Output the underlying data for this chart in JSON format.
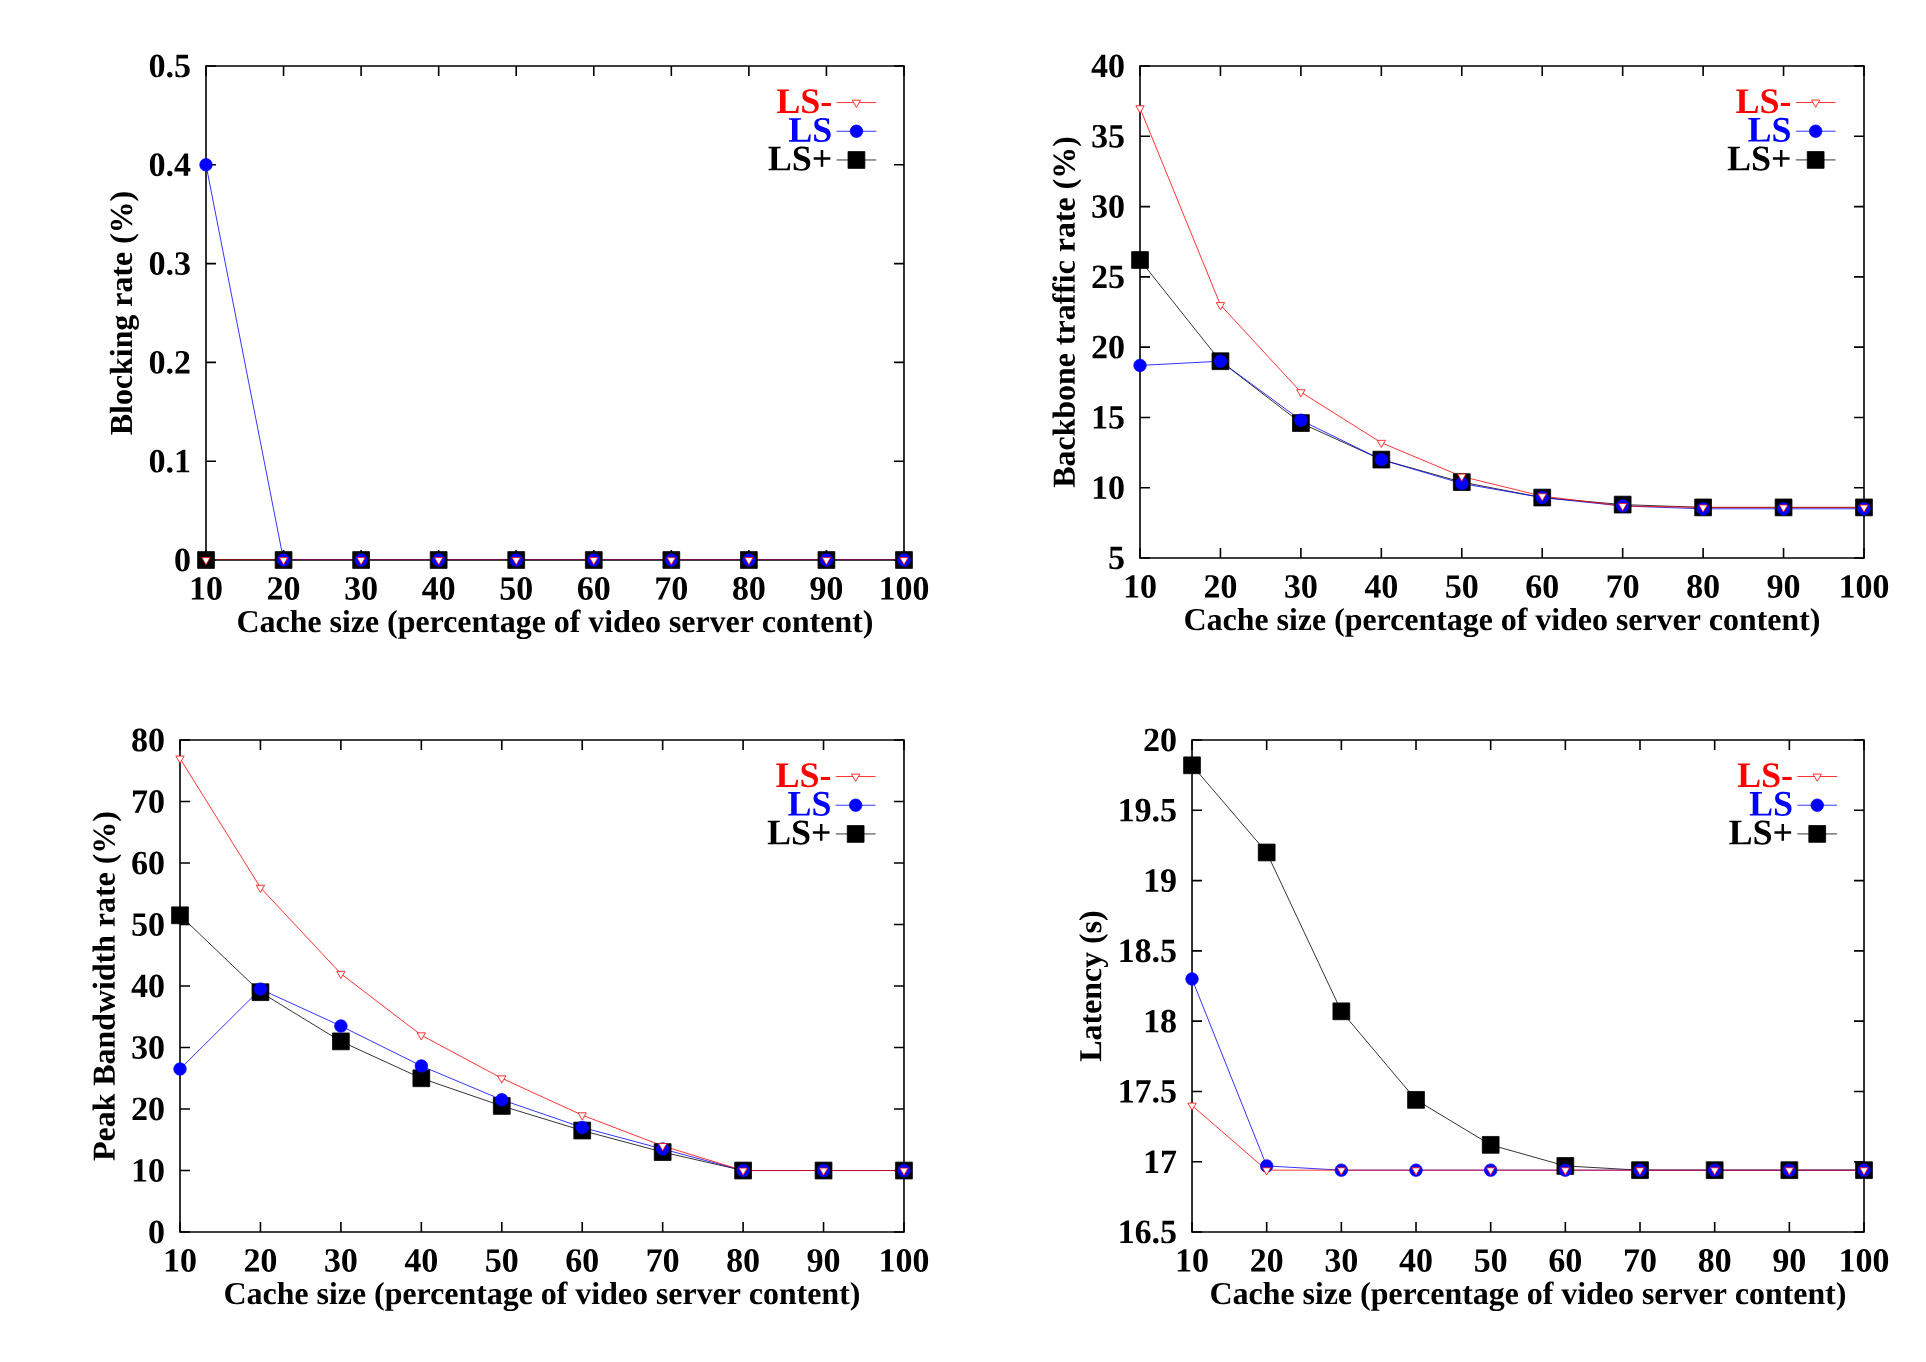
{
  "chart_data": [
    {
      "type": "line",
      "xlabel": "Cache size (percentage of video server content)",
      "ylabel": "Blocking rate (%)",
      "x": [
        10,
        20,
        30,
        40,
        50,
        60,
        70,
        80,
        90,
        100
      ],
      "xlim": [
        10,
        100
      ],
      "xticks": [
        10,
        20,
        30,
        40,
        50,
        60,
        70,
        80,
        90,
        100
      ],
      "ylim": [
        0,
        0.5
      ],
      "yticks": [
        0,
        0.1,
        0.2,
        0.3,
        0.4,
        0.5
      ],
      "legend": "top right",
      "series": [
        {
          "name": "LS-",
          "color": "#ff0000",
          "marker": "triangle",
          "values": [
            0,
            0,
            0,
            0,
            0,
            0,
            0,
            0,
            0,
            0
          ]
        },
        {
          "name": "LS",
          "color": "#0000ff",
          "marker": "circle",
          "values": [
            0.4,
            0,
            0,
            0,
            0,
            0,
            0,
            0,
            0,
            0
          ]
        },
        {
          "name": "LS+",
          "color": "#000000",
          "marker": "square",
          "values": [
            0,
            0,
            0,
            0,
            0,
            0,
            0,
            0,
            0,
            0
          ]
        }
      ]
    },
    {
      "type": "line",
      "xlabel": "Cache size (percentage of video server content)",
      "ylabel": "Backbone traffic rate (%)",
      "x": [
        10,
        20,
        30,
        40,
        50,
        60,
        70,
        80,
        90,
        100
      ],
      "xlim": [
        10,
        100
      ],
      "xticks": [
        10,
        20,
        30,
        40,
        50,
        60,
        70,
        80,
        90,
        100
      ],
      "ylim": [
        5,
        40
      ],
      "yticks": [
        5,
        10,
        15,
        20,
        25,
        30,
        35,
        40
      ],
      "legend": "top right",
      "series": [
        {
          "name": "LS-",
          "color": "#ff0000",
          "marker": "triangle",
          "values": [
            37,
            23,
            16.8,
            13.2,
            10.8,
            9.4,
            8.7,
            8.6,
            8.6,
            8.6
          ]
        },
        {
          "name": "LS",
          "color": "#0000ff",
          "marker": "circle",
          "values": [
            18.7,
            19,
            14.8,
            12,
            10.3,
            9.3,
            8.7,
            8.5,
            8.5,
            8.5
          ]
        },
        {
          "name": "LS+",
          "color": "#000000",
          "marker": "square",
          "values": [
            26.2,
            19,
            14.6,
            12,
            10.4,
            9.3,
            8.8,
            8.6,
            8.6,
            8.6
          ]
        }
      ]
    },
    {
      "type": "line",
      "xlabel": "Cache size (percentage of video server content)",
      "ylabel": "Peak Bandwidth rate (%)",
      "x": [
        10,
        20,
        30,
        40,
        50,
        60,
        70,
        80,
        90,
        100
      ],
      "xlim": [
        10,
        100
      ],
      "xticks": [
        10,
        20,
        30,
        40,
        50,
        60,
        70,
        80,
        90,
        100
      ],
      "ylim": [
        0,
        80
      ],
      "yticks": [
        0,
        10,
        20,
        30,
        40,
        50,
        60,
        70,
        80
      ],
      "legend": "top right",
      "series": [
        {
          "name": "LS-",
          "color": "#ff0000",
          "marker": "triangle",
          "values": [
            77,
            56,
            42,
            32,
            25,
            19,
            14,
            10,
            10,
            10
          ]
        },
        {
          "name": "LS",
          "color": "#0000ff",
          "marker": "circle",
          "values": [
            26.5,
            39.5,
            33.5,
            27,
            21.5,
            17,
            13.5,
            10,
            10,
            10
          ]
        },
        {
          "name": "LS+",
          "color": "#000000",
          "marker": "square",
          "values": [
            51.5,
            39,
            31,
            25,
            20.5,
            16.5,
            13,
            10,
            10,
            10
          ]
        }
      ]
    },
    {
      "type": "line",
      "xlabel": "Cache size (percentage of video server content)",
      "ylabel": "Latency (s)",
      "x": [
        10,
        20,
        30,
        40,
        50,
        60,
        70,
        80,
        90,
        100
      ],
      "xlim": [
        10,
        100
      ],
      "xticks": [
        10,
        20,
        30,
        40,
        50,
        60,
        70,
        80,
        90,
        100
      ],
      "ylim": [
        16.5,
        20
      ],
      "yticks": [
        16.5,
        17,
        17.5,
        18,
        18.5,
        19,
        19.5,
        20
      ],
      "legend": "top right",
      "series": [
        {
          "name": "LS-",
          "color": "#ff0000",
          "marker": "triangle",
          "values": [
            17.4,
            16.94,
            16.94,
            16.94,
            16.94,
            16.94,
            16.94,
            16.94,
            16.94,
            16.94
          ]
        },
        {
          "name": "LS",
          "color": "#0000ff",
          "marker": "circle",
          "values": [
            18.3,
            16.97,
            16.94,
            16.94,
            16.94,
            16.94,
            16.94,
            16.94,
            16.94,
            16.94
          ]
        },
        {
          "name": "LS+",
          "color": "#000000",
          "marker": "square",
          "values": [
            19.82,
            19.2,
            18.07,
            17.44,
            17.12,
            16.97,
            16.94,
            16.94,
            16.94,
            16.94
          ]
        }
      ]
    }
  ]
}
